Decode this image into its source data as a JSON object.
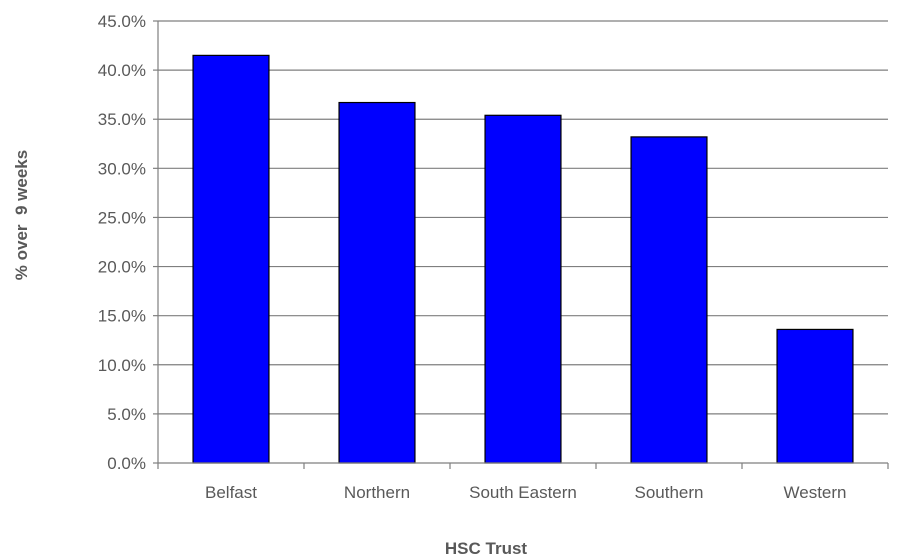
{
  "chart_data": {
    "type": "bar",
    "title": "",
    "xlabel": "HSC Trust",
    "ylabel": "% over  9 weeks",
    "categories": [
      "Belfast",
      "Northern",
      "South Eastern",
      "Southern",
      "Western"
    ],
    "values": [
      41.5,
      36.7,
      35.4,
      33.2,
      13.6
    ],
    "ylim": [
      0,
      45
    ],
    "ytick_step": 5,
    "ytick_labels": [
      "0.0%",
      "5.0%",
      "10.0%",
      "15.0%",
      "20.0%",
      "25.0%",
      "30.0%",
      "35.0%",
      "40.0%",
      "45.0%"
    ],
    "grid": true,
    "legend": "none",
    "bar_color": "#0000ff",
    "bar_edge_color": "#000000",
    "grid_color": "#7f7f7f"
  }
}
